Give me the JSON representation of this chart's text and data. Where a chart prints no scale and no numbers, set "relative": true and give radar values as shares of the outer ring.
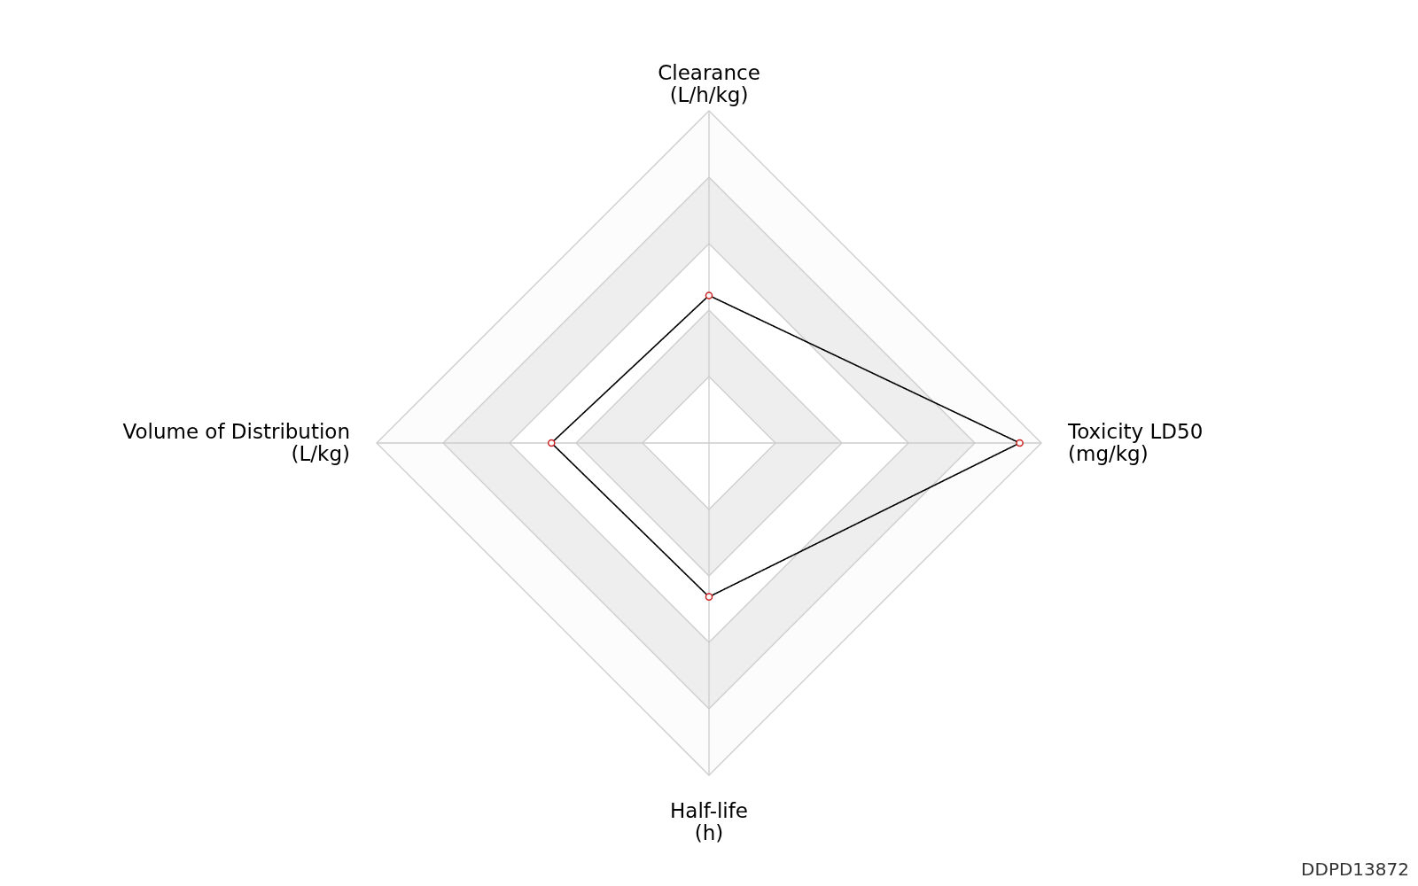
{
  "chart_data": {
    "type": "radar",
    "relative": true,
    "categories": [
      "Clearance\n(L/h/kg)",
      "Toxicity LD50\n(mg/kg)",
      "Half-life\n(h)",
      "Volume of Distribution\n(L/kg)"
    ],
    "series": [
      {
        "color": "#000000",
        "values": [
          0.444,
          0.935,
          0.463,
          0.474
        ]
      }
    ],
    "marker": "circle",
    "annotations": [
      "DDPD13872"
    ]
  }
}
